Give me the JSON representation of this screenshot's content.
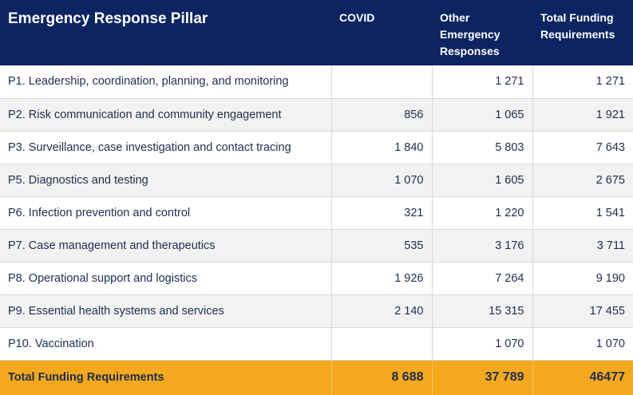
{
  "table": {
    "headers": {
      "pillar": "Emergency Response Pillar",
      "covid": "COVID",
      "other": "Other Emergency Responses",
      "total": "Total Funding Requirements"
    },
    "rows": [
      {
        "pillar": "P1. Leadership, coordination, planning, and monitoring",
        "covid": "",
        "other": "1 271",
        "total": "1 271"
      },
      {
        "pillar": "P2. Risk communication and community engagement",
        "covid": "856",
        "other": "1 065",
        "total": "1 921"
      },
      {
        "pillar": "P3. Surveillance, case investigation and contact tracing",
        "covid": "1 840",
        "other": "5 803",
        "total": "7 643"
      },
      {
        "pillar": "P5. Diagnostics and testing",
        "covid": "1 070",
        "other": "1 605",
        "total": "2 675"
      },
      {
        "pillar": "P6. Infection prevention and control",
        "covid": "321",
        "other": "1 220",
        "total": "1 541"
      },
      {
        "pillar": "P7. Case management and therapeutics",
        "covid": "535",
        "other": "3 176",
        "total": "3 711"
      },
      {
        "pillar": "P8. Operational support and logistics",
        "covid": "1 926",
        "other": "7 264",
        "total": "9 190"
      },
      {
        "pillar": "P9. Essential health systems and services",
        "covid": "2 140",
        "other": "15 315",
        "total": "17 455"
      },
      {
        "pillar": "P10. Vaccination",
        "covid": "",
        "other": "1 070",
        "total": "1 070"
      }
    ],
    "footer": {
      "label": "Total Funding Requirements",
      "covid": "8 688",
      "other": "37 789",
      "total": "46477"
    }
  },
  "colors": {
    "header_bg": "#0c2461",
    "footer_bg": "#f3a81e",
    "row_alt_bg": "#f2f2f2"
  }
}
